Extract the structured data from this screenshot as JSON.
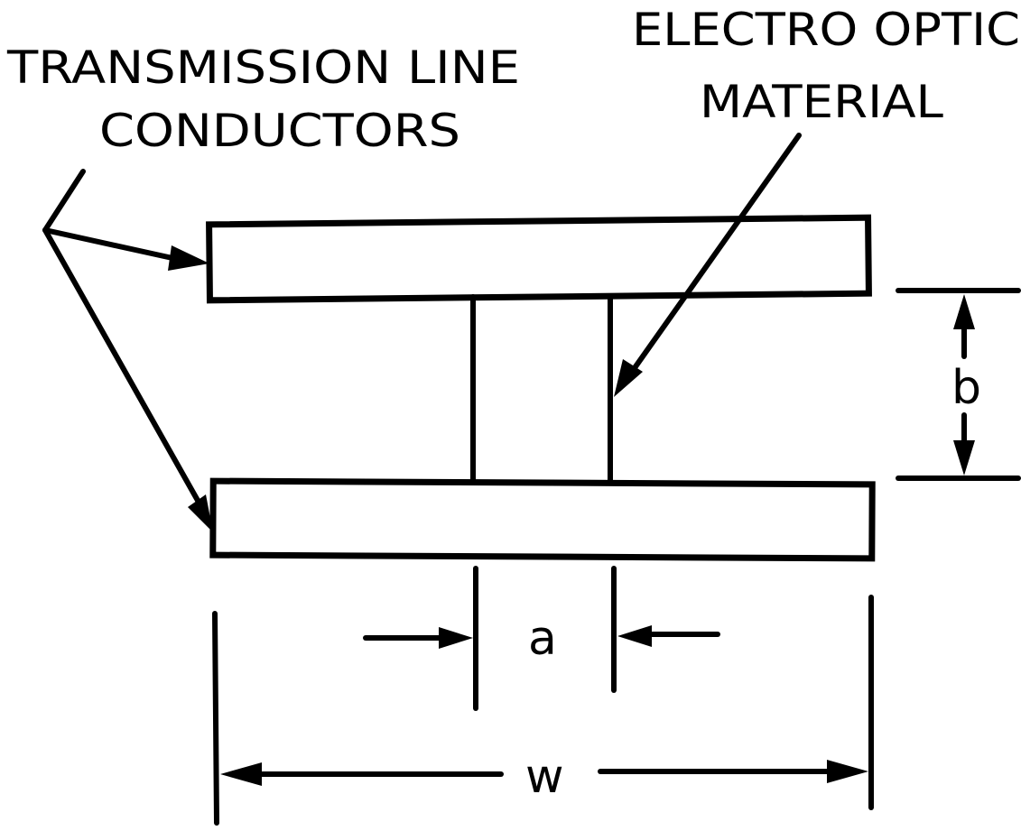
{
  "labels": {
    "transmission_line_line1": "TRANSMISSION LINE",
    "transmission_line_line2": "CONDUCTORS",
    "electro_optic_line1": "ELECTRO OPTIC",
    "electro_optic_line2": "MATERIAL"
  },
  "dimensions": {
    "a": "a",
    "b": "b",
    "w": "w"
  }
}
